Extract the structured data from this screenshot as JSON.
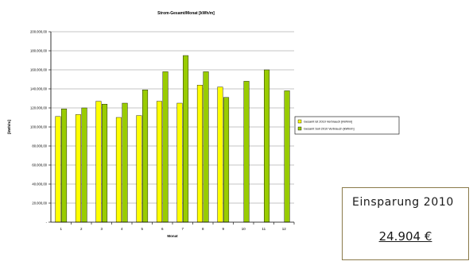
{
  "chart_data": {
    "type": "bar",
    "title": "Strom-Gesamt/Monat [kWh/m]",
    "xlabel": "Monat",
    "ylabel": "[kWh/m]",
    "categories": [
      "1",
      "2",
      "3",
      "4",
      "5",
      "6",
      "7",
      "8",
      "9",
      "10",
      "11",
      "12"
    ],
    "ylim": [
      0,
      200000
    ],
    "yticks": [
      "-",
      "20.000,00",
      "40.000,00",
      "60.000,00",
      "80.000,00",
      "100.000,00",
      "120.000,00",
      "140.000,00",
      "160.000,00",
      "180.000,00",
      "200.000,00"
    ],
    "grid": true,
    "legend_position": "right",
    "series": [
      {
        "name": "Gesamt Ist 2010 Verbrauch [kWh/m]",
        "color": "#ffff00",
        "values": [
          111000,
          113000,
          127000,
          110000,
          112000,
          127000,
          125000,
          144000,
          142000,
          null,
          null,
          null
        ]
      },
      {
        "name": "Gesamt Soll 2010 Verbrauch [kWh/m]",
        "color": "#99cc00",
        "values": [
          119000,
          120000,
          124000,
          125000,
          139000,
          158000,
          175000,
          158000,
          131000,
          148000,
          160000,
          138000
        ]
      }
    ]
  },
  "savings": {
    "label": "Einsparung  2010",
    "value": "24.904 €"
  }
}
